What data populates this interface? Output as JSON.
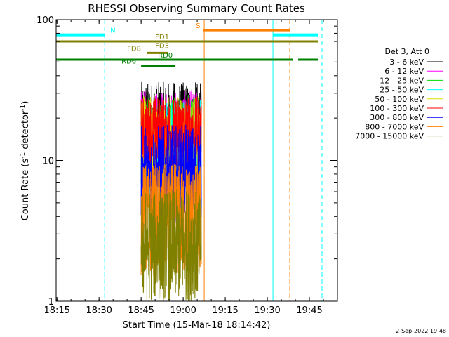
{
  "chart_data": {
    "type": "line",
    "title": "RHESSI Observing Summary Count Rates",
    "xlabel": "Start Time (15-Mar-18 18:14:42)",
    "ylabel_main": "Count Rate (s",
    "ylabel_sup1": "-1",
    "ylabel_mid": " detector",
    "ylabel_sup2": "-1",
    "ylabel_end": ")",
    "y_scale": "log",
    "ylim": [
      1,
      100
    ],
    "xlim": [
      "18:14:42",
      "19:55:00"
    ],
    "x_ticks": [
      "18:15",
      "18:30",
      "18:45",
      "19:00",
      "19:15",
      "19:30",
      "19:45"
    ],
    "y_ticks": [
      "1",
      "10",
      "100"
    ],
    "grid": false,
    "legend_placement": "right",
    "legend_title": "Det 3, Att 0",
    "series": [
      {
        "name": "3 - 6 keV",
        "color": "#000000",
        "start": "18:45:00",
        "end": "19:06:30",
        "level": 19,
        "noise": 0.28
      },
      {
        "name": "6 - 12 keV",
        "color": "#ff00ff",
        "start": "18:45:00",
        "end": "19:06:30",
        "level": 15,
        "noise": 0.32
      },
      {
        "name": "12 - 25 keV",
        "color": "#00dd00",
        "start": "18:45:00",
        "end": "19:06:30",
        "level": 13,
        "noise": 0.35
      },
      {
        "name": "25 - 50 keV",
        "color": "#00ffff",
        "start": "18:45:00",
        "end": "19:06:30",
        "level": 11,
        "noise": 0.4
      },
      {
        "name": "50 - 100 keV",
        "color": "#dddd00",
        "start": "18:45:00",
        "end": "19:06:30",
        "level": 12,
        "noise": 0.38
      },
      {
        "name": "100 - 300 keV",
        "color": "#ff0000",
        "start": "18:45:00",
        "end": "19:06:30",
        "level": 16,
        "noise": 0.25
      },
      {
        "name": "300 - 800 keV",
        "color": "#0000ff",
        "start": "18:45:00",
        "end": "19:06:30",
        "level": 8,
        "noise": 0.35
      },
      {
        "name": "800 - 7000 keV",
        "color": "#ff8000",
        "start": "18:45:00",
        "end": "19:06:30",
        "level": 3.8,
        "noise": 0.4
      },
      {
        "name": "7000 - 15000 keV",
        "color": "#808000",
        "start": "18:45:00",
        "end": "19:06:30",
        "level": 2.5,
        "noise": 0.4
      }
    ],
    "flags": [
      {
        "label": "N",
        "color": "#00ffff",
        "segments": [
          [
            "18:14:42",
            "18:32:00"
          ],
          [
            "19:32:00",
            "19:48:00"
          ]
        ],
        "level": 78,
        "width": 4
      },
      {
        "label": "S",
        "color": "#ff8000",
        "segments": [
          [
            "19:07:00",
            "19:38:00"
          ]
        ],
        "level": 84,
        "width": 3
      },
      {
        "label": "FD1",
        "color": "#808000",
        "segments": [
          [
            "18:14:42",
            "19:48:00"
          ]
        ],
        "level": 70,
        "width": 3
      },
      {
        "label": "FD3",
        "color": "#808000",
        "segments": [],
        "level": 65,
        "width": 3
      },
      {
        "label": "FD8",
        "color": "#808000",
        "segments": [
          [
            "18:47:00",
            "18:54:30"
          ]
        ],
        "level": 58,
        "width": 3
      },
      {
        "label": "RD0",
        "color": "#008000",
        "segments": [
          [
            "18:14:42",
            "19:39:00"
          ],
          [
            "19:41:00",
            "19:48:00"
          ]
        ],
        "level": 52,
        "width": 3
      },
      {
        "label": "RD6",
        "color": "#008000",
        "segments": [
          [
            "18:45:00",
            "18:57:00"
          ]
        ],
        "level": 47,
        "width": 3
      }
    ],
    "vlines": [
      {
        "t": "18:14:42",
        "color": "#00ffff",
        "dashed": false
      },
      {
        "t": "18:32:00",
        "color": "#00ffff",
        "dashed": true
      },
      {
        "t": "19:07:30",
        "color": "#ff8000",
        "dashed": false
      },
      {
        "t": "19:32:00",
        "color": "#00ffff",
        "dashed": false
      },
      {
        "t": "19:38:00",
        "color": "#ff8000",
        "dashed": true
      },
      {
        "t": "19:49:30",
        "color": "#00ffff",
        "dashed": true
      }
    ]
  },
  "footer_date": "2-Sep-2022 19:48"
}
